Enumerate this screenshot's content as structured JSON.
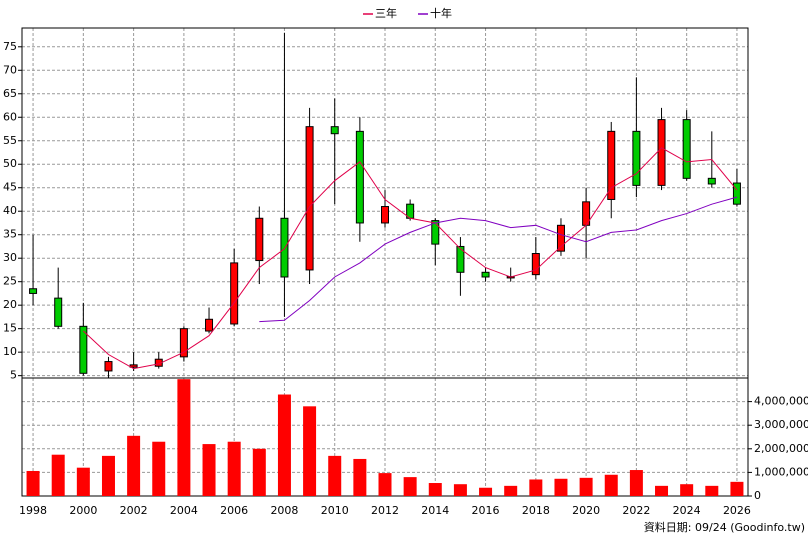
{
  "chart_data": [
    {
      "type": "candlestick",
      "x": [
        1998,
        1999,
        2000,
        2001,
        2002,
        2003,
        2004,
        2005,
        2006,
        2007,
        2008,
        2009,
        2010,
        2011,
        2012,
        2013,
        2014,
        2015,
        2016,
        2017,
        2018,
        2019,
        2020,
        2021,
        2022,
        2023,
        2024,
        2025,
        2026
      ],
      "open": [
        23.5,
        21.5,
        15.5,
        6,
        6.8,
        7,
        9,
        14.5,
        16,
        29.5,
        38.5,
        27.5,
        58,
        57,
        37.5,
        41.5,
        38,
        32.5,
        27,
        25.8,
        26.5,
        31.5,
        37,
        42.5,
        57,
        45.5,
        59.5,
        47,
        46
      ],
      "high": [
        35,
        28,
        20.5,
        9,
        10,
        10,
        15.5,
        19.5,
        32,
        41,
        78,
        62,
        64,
        60,
        44.5,
        42.5,
        38.5,
        34.5,
        28,
        28,
        34.5,
        38.5,
        45,
        59,
        68.5,
        62,
        61.5,
        57,
        49
      ],
      "low": [
        20,
        15,
        5,
        4.5,
        6,
        6.5,
        8,
        14,
        15.5,
        24.5,
        17.5,
        24.5,
        41.5,
        33.5,
        36.5,
        38,
        28.5,
        22,
        25,
        25,
        25.5,
        30.5,
        30,
        38.5,
        43,
        44.5,
        46.5,
        45,
        41
      ],
      "close": [
        22.5,
        15.5,
        5.5,
        8,
        7.3,
        8.5,
        15,
        17,
        29,
        38.5,
        26,
        58,
        56.5,
        37.5,
        41,
        38.5,
        33,
        27,
        26,
        26.1,
        31,
        37,
        42,
        57,
        45.5,
        59.5,
        47,
        45.8,
        41.5
      ],
      "up_color": "#ff0000",
      "down_color": "#00cc00",
      "series": [
        {
          "name": "三年",
          "color": "#e0004a",
          "values": [
            null,
            null,
            14.5,
            9.5,
            6.5,
            7.5,
            10,
            13.5,
            20.5,
            28,
            32,
            41,
            46.5,
            50.5,
            42.5,
            38.5,
            37.5,
            32,
            28,
            26,
            27.5,
            32.5,
            37,
            45,
            48,
            53.5,
            50.5,
            51,
            44.5
          ]
        },
        {
          "name": "十年",
          "color": "#8000c0",
          "values": [
            null,
            null,
            null,
            null,
            null,
            null,
            null,
            null,
            null,
            16.5,
            16.8,
            21,
            26,
            29,
            33,
            35.5,
            37.5,
            38.5,
            38,
            36.5,
            37,
            35,
            33.5,
            35.5,
            36,
            38,
            39.5,
            41.5,
            43
          ]
        }
      ],
      "xlim": [
        1997.56,
        2026.44
      ],
      "xticks": [
        1998,
        2000,
        2002,
        2004,
        2006,
        2008,
        2010,
        2012,
        2014,
        2016,
        2018,
        2020,
        2022,
        2024,
        2026
      ],
      "ylim": [
        4.5,
        79
      ],
      "yticks": [
        5,
        10,
        15,
        20,
        25,
        30,
        35,
        40,
        45,
        50,
        55,
        60,
        65,
        70,
        75
      ],
      "grid": true,
      "legend": "top"
    },
    {
      "type": "bar",
      "x": [
        1998,
        1999,
        2000,
        2001,
        2002,
        2003,
        2004,
        2005,
        2006,
        2007,
        2008,
        2009,
        2010,
        2011,
        2012,
        2013,
        2014,
        2015,
        2016,
        2017,
        2018,
        2019,
        2020,
        2021,
        2022,
        2023,
        2024,
        2025,
        2026
      ],
      "values": [
        1060000,
        1750000,
        1200000,
        1700000,
        2550000,
        2300000,
        4950000,
        2200000,
        2300000,
        2000000,
        4300000,
        3800000,
        1700000,
        1570000,
        970000,
        800000,
        550000,
        500000,
        350000,
        430000,
        700000,
        730000,
        770000,
        900000,
        1100000,
        430000,
        500000,
        430000,
        600000
      ],
      "color": "#ff0000",
      "xlim": [
        1997.56,
        2026.44
      ],
      "xticks": [
        1998,
        2000,
        2002,
        2004,
        2006,
        2008,
        2010,
        2012,
        2014,
        2016,
        2018,
        2020,
        2022,
        2024,
        2026
      ],
      "ylim": [
        0,
        5000000
      ],
      "yticks": [
        0,
        {
          "value": 1000000,
          "label": "1,000,000"
        },
        {
          "value": 2000000,
          "label": "2,000,000"
        },
        {
          "value": 3000000,
          "label": "3,000,000"
        },
        {
          "value": 4000000,
          "label": "4,000,000"
        }
      ],
      "grid": true
    }
  ],
  "footnote": "資料日期: 09/24  (Goodinfo.tw)"
}
